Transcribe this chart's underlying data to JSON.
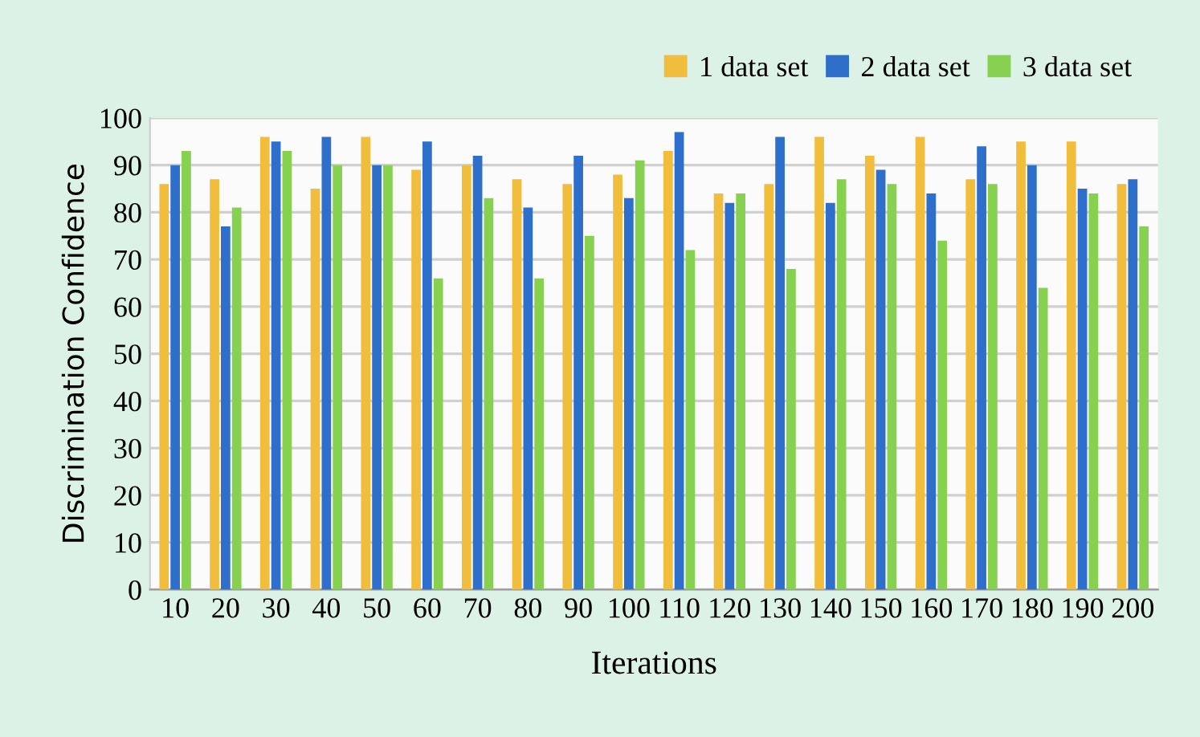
{
  "chart_data": {
    "type": "bar",
    "xlabel": "Iterations",
    "ylabel": "Discrimination Confidence",
    "categories": [
      "10",
      "20",
      "30",
      "40",
      "50",
      "60",
      "70",
      "80",
      "90",
      "100",
      "110",
      "120",
      "130",
      "140",
      "150",
      "160",
      "170",
      "180",
      "190",
      "200"
    ],
    "series": [
      {
        "name": "1 data set",
        "color": "#f0be3c",
        "values": [
          86,
          87,
          96,
          85,
          96,
          89,
          90,
          87,
          86,
          88,
          93,
          84,
          86,
          96,
          92,
          96,
          87,
          95,
          95,
          86
        ]
      },
      {
        "name": "2 data set",
        "color": "#2f6fcc",
        "values": [
          90,
          77,
          95,
          96,
          90,
          95,
          92,
          81,
          92,
          83,
          97,
          82,
          96,
          82,
          89,
          84,
          94,
          90,
          85,
          87
        ]
      },
      {
        "name": "3 data set",
        "color": "#86d14f",
        "values": [
          93,
          81,
          93,
          90,
          90,
          66,
          83,
          66,
          75,
          91,
          72,
          84,
          68,
          87,
          86,
          74,
          86,
          64,
          84,
          77
        ]
      }
    ],
    "ylim": [
      0,
      100
    ],
    "yticks": [
      0,
      10,
      20,
      30,
      40,
      50,
      60,
      70,
      80,
      90,
      100
    ],
    "grid": "y",
    "legend": "top right"
  }
}
